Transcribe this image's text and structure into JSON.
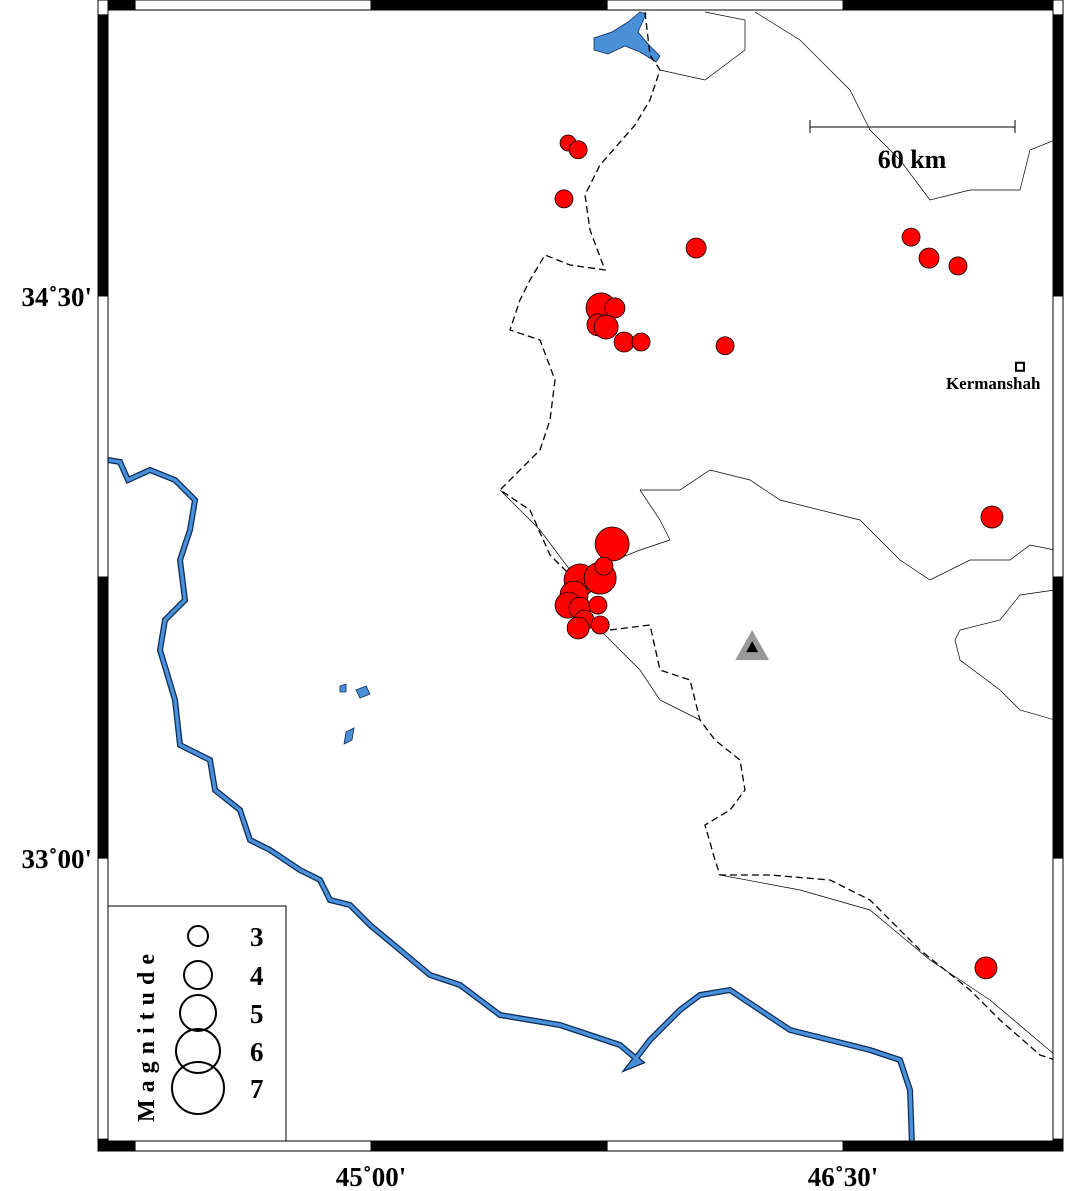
{
  "map": {
    "extent": {
      "lon_min": 44.164,
      "lon_max": 47.167,
      "lat_min": 32.245,
      "lat_max": 35.263
    },
    "x_ticks": [
      {
        "lon": 45.0,
        "label": "45˚00'"
      },
      {
        "lon": 46.5,
        "label": "46˚30'"
      }
    ],
    "y_ticks": [
      {
        "lat": 34.5,
        "label": "34˚30'"
      },
      {
        "lat": 33.0,
        "label": "33˚00'"
      }
    ],
    "frame_interval_deg": 0.75,
    "scale_bar": {
      "label": "60 km",
      "length_km": 60
    },
    "city": {
      "name": "Kermanshah",
      "lon": 47.062,
      "lat": 34.311
    },
    "station": {
      "symbol": "triangle",
      "lon": 46.211,
      "lat": 33.563
    },
    "colors": {
      "event_fill": "#ff0000",
      "water": "#4a90d9",
      "station": "#999999"
    }
  },
  "legend": {
    "title": "Magnitude",
    "entries": [
      {
        "mag": 3,
        "label": "3"
      },
      {
        "mag": 4,
        "label": "4"
      },
      {
        "mag": 5,
        "label": "5"
      },
      {
        "mag": 6,
        "label": "6"
      },
      {
        "mag": 7,
        "label": "7"
      }
    ]
  },
  "events": [
    {
      "lon": 45.626,
      "lat": 34.908,
      "mag": 2.5
    },
    {
      "lon": 45.658,
      "lat": 34.89,
      "mag": 2.75
    },
    {
      "lon": 45.613,
      "lat": 34.759,
      "mag": 2.75
    },
    {
      "lon": 46.033,
      "lat": 34.628,
      "mag": 3.0
    },
    {
      "lon": 46.716,
      "lat": 34.657,
      "mag": 2.75
    },
    {
      "lon": 46.773,
      "lat": 34.601,
      "mag": 3.0
    },
    {
      "lon": 46.865,
      "lat": 34.58,
      "mag": 2.75
    },
    {
      "lon": 45.731,
      "lat": 34.468,
      "mag": 4.25
    },
    {
      "lon": 45.775,
      "lat": 34.468,
      "mag": 3.0
    },
    {
      "lon": 45.721,
      "lat": 34.423,
      "mag": 3.25
    },
    {
      "lon": 45.747,
      "lat": 34.417,
      "mag": 3.5
    },
    {
      "lon": 45.804,
      "lat": 34.377,
      "mag": 3.0
    },
    {
      "lon": 45.858,
      "lat": 34.377,
      "mag": 2.75
    },
    {
      "lon": 46.125,
      "lat": 34.367,
      "mag": 2.75
    },
    {
      "lon": 46.973,
      "lat": 33.91,
      "mag": 3.25
    },
    {
      "lon": 45.766,
      "lat": 33.838,
      "mag": 4.75
    },
    {
      "lon": 45.664,
      "lat": 33.742,
      "mag": 4.5
    },
    {
      "lon": 45.728,
      "lat": 33.747,
      "mag": 4.5
    },
    {
      "lon": 45.74,
      "lat": 33.779,
      "mag": 2.75
    },
    {
      "lon": 45.645,
      "lat": 33.702,
      "mag": 4.0
    },
    {
      "lon": 45.626,
      "lat": 33.675,
      "mag": 3.75
    },
    {
      "lon": 45.664,
      "lat": 33.667,
      "mag": 3.25
    },
    {
      "lon": 45.721,
      "lat": 33.675,
      "mag": 2.75
    },
    {
      "lon": 45.677,
      "lat": 33.635,
      "mag": 3.0
    },
    {
      "lon": 45.658,
      "lat": 33.614,
      "mag": 3.25
    },
    {
      "lon": 45.728,
      "lat": 33.622,
      "mag": 2.75
    },
    {
      "lon": 46.954,
      "lat": 32.707,
      "mag": 3.25
    }
  ]
}
